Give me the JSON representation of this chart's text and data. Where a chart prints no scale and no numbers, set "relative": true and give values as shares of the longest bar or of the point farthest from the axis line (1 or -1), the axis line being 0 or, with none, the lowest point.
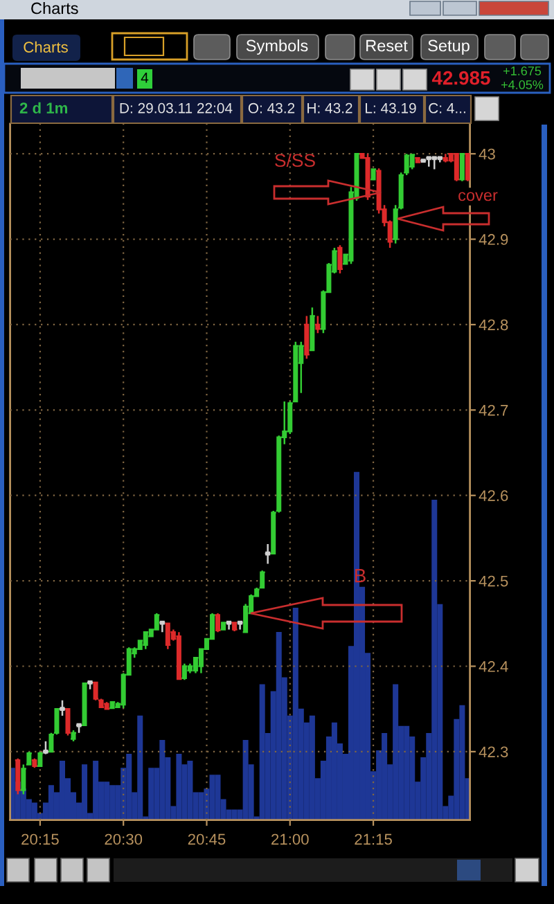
{
  "chart_data": [
    {
      "type": "bar",
      "relative": true,
      "color": "#1e3796",
      "tick_labels": "x",
      "grid": "x",
      "xlim": [
        20.16,
        21.54
      ],
      "xticks": [
        {
          "value": 20.25,
          "label": "20:15"
        },
        {
          "value": 20.5,
          "label": "20:30"
        },
        {
          "value": 20.75,
          "label": "20:45"
        },
        {
          "value": 21,
          "label": "21:00"
        },
        {
          "value": 21.25,
          "label": "21:15"
        }
      ],
      "x": [
        20.1667,
        20.1833,
        20.2,
        20.2167,
        20.2333,
        20.25,
        20.2667,
        20.2833,
        20.3,
        20.3167,
        20.3333,
        20.35,
        20.3667,
        20.3833,
        20.4,
        20.4167,
        20.4333,
        20.45,
        20.4667,
        20.4833,
        20.5,
        20.5167,
        20.5333,
        20.55,
        20.5667,
        20.5833,
        20.6,
        20.6167,
        20.6333,
        20.65,
        20.6667,
        20.6833,
        20.7,
        20.7167,
        20.7333,
        20.75,
        20.7667,
        20.7833,
        20.8,
        20.8167,
        20.8333,
        20.85,
        20.8667,
        20.8833,
        20.9,
        20.9167,
        20.9333,
        20.95,
        20.9667,
        20.9833,
        21,
        21.0167,
        21.0333,
        21.05,
        21.0667,
        21.0833,
        21.1,
        21.1167,
        21.1333,
        21.15,
        21.1667,
        21.1833,
        21.2,
        21.2167,
        21.2333,
        21.25,
        21.2667,
        21.2833,
        21.3,
        21.3167,
        21.3333,
        21.35,
        21.3667,
        21.3833,
        21.4,
        21.4167,
        21.4333,
        21.45,
        21.4667,
        21.4833,
        21.5,
        21.5167,
        21.5333
      ],
      "values": [
        0.15,
        0.11,
        0.09,
        0.06,
        0.05,
        0.02,
        0.05,
        0.1,
        0.08,
        0.17,
        0.12,
        0.08,
        0.05,
        0.16,
        0.02,
        0.17,
        0.11,
        0.11,
        0.1,
        0.1,
        0.15,
        0.19,
        0.08,
        0.3,
        0.01,
        0.15,
        0.15,
        0.23,
        0.18,
        0.04,
        0.19,
        0.16,
        0.17,
        0.08,
        0.08,
        0.09,
        0.13,
        0.13,
        0.06,
        0.03,
        0.03,
        0.03,
        0.23,
        0.16,
        0.01,
        0.39,
        0.25,
        0.37,
        0.54,
        0.41,
        0.3,
        0.61,
        0.32,
        0.28,
        0.3,
        0.12,
        0.17,
        0.24,
        0.28,
        0.22,
        0.19,
        0.5,
        1,
        0.67,
        0.48,
        0.14,
        0.2,
        0.25,
        0.16,
        0.39,
        0.27,
        0.27,
        0.24,
        0.11,
        0.18,
        0.25,
        0.92,
        0.62,
        0.04,
        0.07,
        0.29,
        0.33,
        0.12
      ]
    },
    {
      "type": "candlestick",
      "title": "Charts",
      "tick_labels": "y",
      "grid": "y",
      "x": [
        20.1833,
        20.2,
        20.2167,
        20.2333,
        20.25,
        20.2667,
        20.2833,
        20.3,
        20.3167,
        20.3333,
        20.35,
        20.3667,
        20.3833,
        20.4,
        20.4167,
        20.4333,
        20.45,
        20.4667,
        20.4833,
        20.5,
        20.5167,
        20.5333,
        20.55,
        20.5667,
        20.5833,
        20.6,
        20.6167,
        20.6333,
        20.65,
        20.6667,
        20.6833,
        20.7,
        20.7167,
        20.7333,
        20.75,
        20.7667,
        20.7833,
        20.8,
        20.8167,
        20.8333,
        20.85,
        20.8667,
        20.8833,
        20.9,
        20.9167,
        20.9333,
        20.95,
        20.9667,
        20.9833,
        21,
        21.0167,
        21.0333,
        21.05,
        21.0667,
        21.0833,
        21.1,
        21.1167,
        21.1333,
        21.15,
        21.1667,
        21.1833,
        21.2,
        21.2167,
        21.2333,
        21.25,
        21.2667,
        21.2833,
        21.3,
        21.3167,
        21.3333,
        21.35,
        21.3667,
        21.3833,
        21.4,
        21.4167,
        21.4333,
        21.45,
        21.4667,
        21.4833,
        21.5,
        21.5167,
        21.5333
      ],
      "ohlc": [
        [
          42.29,
          42.292,
          42.25,
          42.255
        ],
        [
          42.255,
          42.285,
          42.25,
          42.28
        ],
        [
          42.285,
          42.3,
          42.284,
          42.298
        ],
        [
          42.29,
          42.292,
          42.281,
          42.283
        ],
        [
          42.283,
          42.3,
          42.282,
          42.298
        ],
        [
          42.3,
          42.312,
          42.297,
          42.3
        ],
        [
          42.3,
          42.322,
          42.3,
          42.32
        ],
        [
          42.322,
          42.351,
          42.32,
          42.35
        ],
        [
          42.35,
          42.36,
          42.342,
          42.35
        ],
        [
          42.35,
          42.351,
          42.319,
          42.322
        ],
        [
          42.315,
          42.325,
          42.312,
          42.322
        ],
        [
          42.331,
          42.331,
          42.322,
          42.331
        ],
        [
          42.331,
          42.381,
          42.33,
          42.38
        ],
        [
          42.381,
          42.381,
          42.373,
          42.381
        ],
        [
          42.381,
          42.381,
          42.36,
          42.362
        ],
        [
          42.36,
          42.362,
          42.351,
          42.352
        ],
        [
          42.356,
          42.358,
          42.349,
          42.35
        ],
        [
          42.351,
          42.359,
          42.351,
          42.358
        ],
        [
          42.352,
          42.358,
          42.352,
          42.356
        ],
        [
          42.355,
          42.392,
          42.351,
          42.39
        ],
        [
          42.39,
          42.422,
          42.39,
          42.42
        ],
        [
          42.415,
          42.422,
          42.41,
          42.42
        ],
        [
          42.42,
          42.43,
          42.42,
          42.43
        ],
        [
          42.425,
          42.44,
          42.42,
          42.44
        ],
        [
          42.435,
          42.443,
          42.435,
          42.443
        ],
        [
          42.443,
          42.462,
          42.443,
          42.46
        ],
        [
          42.451,
          42.451,
          42.44,
          42.451
        ],
        [
          42.45,
          42.451,
          42.42,
          42.425
        ],
        [
          42.44,
          42.443,
          42.43,
          42.432
        ],
        [
          42.435,
          42.44,
          42.384,
          42.385
        ],
        [
          42.386,
          42.403,
          42.384,
          42.4
        ],
        [
          42.395,
          42.403,
          42.392,
          42.4
        ],
        [
          42.395,
          42.41,
          42.392,
          42.41
        ],
        [
          42.4,
          42.42,
          42.392,
          42.42
        ],
        [
          42.42,
          42.432,
          42.42,
          42.432
        ],
        [
          42.432,
          42.462,
          42.432,
          42.46
        ],
        [
          42.46,
          42.462,
          42.44,
          42.442
        ],
        [
          42.443,
          42.451,
          42.443,
          42.451
        ],
        [
          42.451,
          42.451,
          42.443,
          42.451
        ],
        [
          42.451,
          42.451,
          42.441,
          42.443
        ],
        [
          42.451,
          42.451,
          42.443,
          42.451
        ],
        [
          42.44,
          42.473,
          42.44,
          42.47
        ],
        [
          42.462,
          42.484,
          42.462,
          42.482
        ],
        [
          42.482,
          42.492,
          42.481,
          42.49
        ],
        [
          42.492,
          42.512,
          42.492,
          42.51
        ],
        [
          42.532,
          42.543,
          42.52,
          42.532
        ],
        [
          42.532,
          42.582,
          42.532,
          42.58
        ],
        [
          42.582,
          42.67,
          42.58,
          42.668
        ],
        [
          42.668,
          42.71,
          42.66,
          42.675
        ],
        [
          42.675,
          42.71,
          42.672,
          42.708
        ],
        [
          42.71,
          42.78,
          42.71,
          42.775
        ],
        [
          42.755,
          42.78,
          42.72,
          42.775
        ],
        [
          42.8,
          42.81,
          42.76,
          42.765
        ],
        [
          42.77,
          42.82,
          42.77,
          42.81
        ],
        [
          42.8,
          42.81,
          42.79,
          42.795
        ],
        [
          42.795,
          42.84,
          42.79,
          42.838
        ],
        [
          42.838,
          42.872,
          42.838,
          42.87
        ],
        [
          42.862,
          42.89,
          42.86,
          42.886
        ],
        [
          42.89,
          42.893,
          42.86,
          42.865
        ],
        [
          42.871,
          42.882,
          42.871,
          42.882
        ],
        [
          42.875,
          42.961,
          42.871,
          42.955
        ],
        [
          42.948,
          43,
          42.945,
          43
        ],
        [
          43,
          43,
          42.994,
          42.995
        ],
        [
          42.995,
          43,
          42.946,
          42.95
        ],
        [
          42.97,
          42.983,
          42.969,
          42.982
        ],
        [
          42.98,
          42.983,
          42.93,
          42.935
        ],
        [
          42.935,
          42.94,
          42.915,
          42.92
        ],
        [
          42.92,
          42.922,
          42.89,
          42.897
        ],
        [
          42.9,
          42.94,
          42.895,
          42.935
        ],
        [
          42.937,
          42.978,
          42.935,
          42.975
        ],
        [
          42.978,
          43,
          42.975,
          42.998
        ],
        [
          42.985,
          43,
          42.982,
          42.999
        ],
        [
          42.995,
          42.995,
          42.99,
          42.99
        ],
        [
          42.992,
          42.992,
          42.99,
          42.992
        ],
        [
          42.995,
          42.995,
          42.985,
          42.995
        ],
        [
          42.995,
          42.995,
          42.982,
          42.995
        ],
        [
          42.995,
          42.995,
          42.99,
          42.995
        ],
        [
          42.995,
          43,
          42.99,
          42.992
        ],
        [
          43,
          43,
          42.99,
          42.992
        ],
        [
          43,
          43,
          42.968,
          42.97
        ],
        [
          42.97,
          43,
          42.968,
          43
        ],
        [
          43,
          43,
          42.968,
          42.97
        ]
      ],
      "colors": [
        "#dd2a2a",
        "#33cc33",
        "#33cc33",
        "#dd2a2a",
        "#33cc33",
        "#d0d0d0",
        "#33cc33",
        "#33cc33",
        "#d0d0d0",
        "#dd2a2a",
        "#33cc33",
        "#d0d0d0",
        "#33cc33",
        "#d0d0d0",
        "#dd2a2a",
        "#dd2a2a",
        "#dd2a2a",
        "#33cc33",
        "#33cc33",
        "#33cc33",
        "#33cc33",
        "#33cc33",
        "#33cc33",
        "#33cc33",
        "#33cc33",
        "#33cc33",
        "#d0d0d0",
        "#dd2a2a",
        "#dd2a2a",
        "#dd2a2a",
        "#33cc33",
        "#33cc33",
        "#33cc33",
        "#33cc33",
        "#33cc33",
        "#33cc33",
        "#dd2a2a",
        "#33cc33",
        "#d0d0d0",
        "#dd2a2a",
        "#d0d0d0",
        "#33cc33",
        "#33cc33",
        "#33cc33",
        "#33cc33",
        "#d0d0d0",
        "#33cc33",
        "#33cc33",
        "#33cc33",
        "#33cc33",
        "#33cc33",
        "#33cc33",
        "#dd2a2a",
        "#33cc33",
        "#dd2a2a",
        "#33cc33",
        "#33cc33",
        "#33cc33",
        "#dd2a2a",
        "#33cc33",
        "#33cc33",
        "#33cc33",
        "#dd2a2a",
        "#dd2a2a",
        "#33cc33",
        "#dd2a2a",
        "#dd2a2a",
        "#dd2a2a",
        "#33cc33",
        "#33cc33",
        "#33cc33",
        "#33cc33",
        "#dd2a2a",
        "#d0d0d0",
        "#d0d0d0",
        "#d0d0d0",
        "#d0d0d0",
        "#dd2a2a",
        "#dd2a2a",
        "#dd2a2a",
        "#33cc33",
        "#dd2a2a"
      ],
      "xlim": [
        20.16,
        21.54
      ],
      "ylim": [
        42.22,
        43.035
      ],
      "yticks": [
        42.3,
        42.4,
        42.5,
        42.6,
        42.7,
        42.8,
        42.9,
        43
      ],
      "annotations": [
        "S/SS",
        "cover",
        "B",
        "Charts",
        "Symbols",
        "Reset",
        "Setup",
        "4",
        "42.985",
        "+1.675",
        "+4.05%",
        "2 d 1m",
        "D: 29.03.11 22:04",
        "O: 43.2",
        "H: 43.2",
        "L: 43.19",
        "C: 4..."
      ]
    }
  ]
}
